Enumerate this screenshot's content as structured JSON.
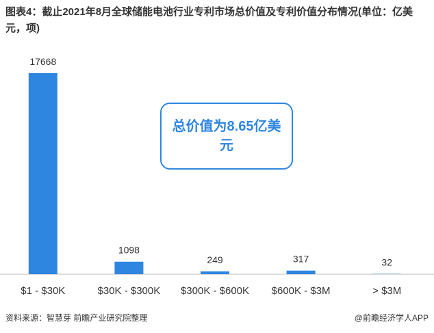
{
  "chart_data": {
    "type": "bar",
    "title": "图表4：截止2021年8月全球储能电池行业专利市场总价值及专利价值分布情况(单位：亿美元，项)",
    "categories": [
      "$1 - $30K",
      "$30K - $300K",
      "$300K - $600K",
      "$600K - $3M",
      "> $3M"
    ],
    "values": [
      17668,
      1098,
      249,
      317,
      32
    ],
    "color": "#2f86e0",
    "annotation": "总价值为8.65亿美元",
    "source": "资料来源：智慧芽 前瞻产业研究院整理",
    "brand": "@前瞻经济学人APP"
  }
}
